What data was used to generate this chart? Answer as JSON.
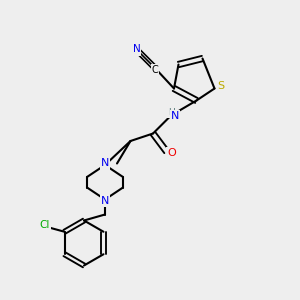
{
  "bg_color": "#eeeeee",
  "bond_color": "#000000",
  "colors": {
    "N": "#0000ee",
    "O": "#ee0000",
    "S": "#bbaa00",
    "Cl": "#00aa00",
    "C": "#000000",
    "H": "#557777",
    "triple": "#000000"
  },
  "lw": 1.5,
  "figsize": [
    3.0,
    3.0
  ],
  "dpi": 100
}
